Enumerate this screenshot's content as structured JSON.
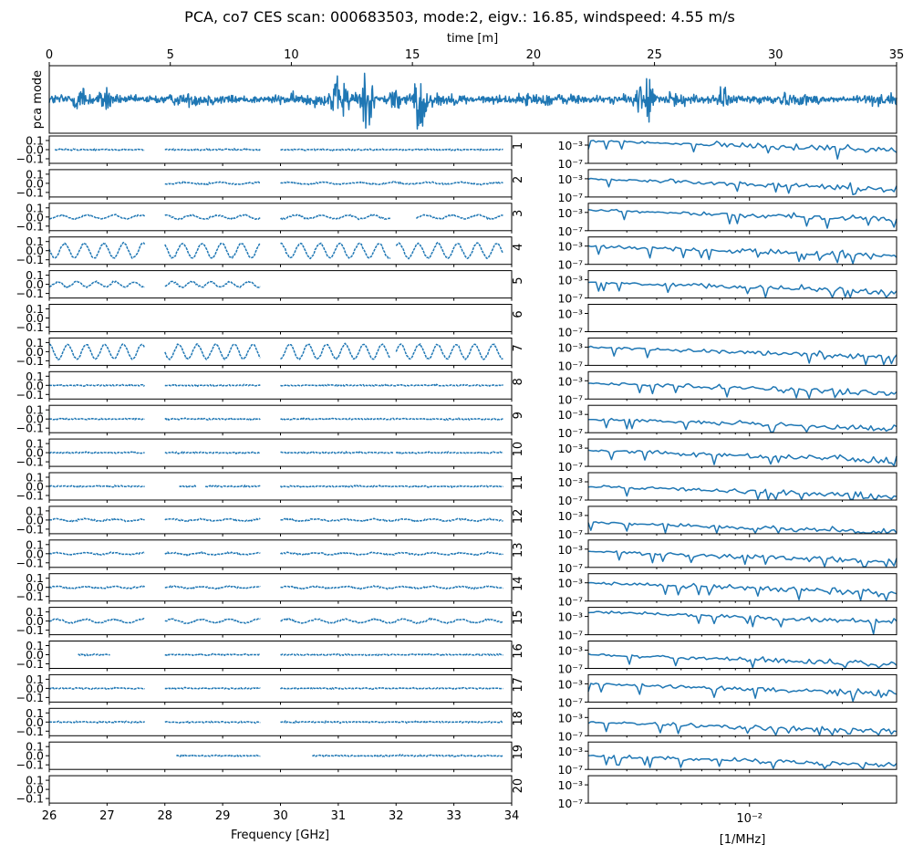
{
  "title": "PCA, co7 CES scan: 000683503, mode:2, eigv.: 16.85, windspeed: 4.55 m/s",
  "colors": {
    "series": "#1f77b4",
    "axes": "#000000",
    "background": "#ffffff"
  },
  "chart_data": [
    {
      "id": "timestream",
      "type": "line",
      "xlabel": "time [m]",
      "ylabel": "pca mode",
      "xlim": [
        0,
        35
      ],
      "xticks": [
        0,
        5,
        10,
        15,
        20,
        25,
        30,
        35
      ],
      "xtick_labels": [
        "0",
        "5",
        "10",
        "15",
        "20",
        "25",
        "30",
        "35"
      ],
      "xaxis_position": "top",
      "yticks": [],
      "ylim": [
        -4,
        4
      ],
      "description_of_series": "single noisy PCA-mode timestream, baseline near 0",
      "bursts": [
        {
          "t": 1.3,
          "amp": 1.3
        },
        {
          "t": 2.4,
          "amp": 1.2
        },
        {
          "t": 11.8,
          "amp": 1.6
        },
        {
          "t": 12.3,
          "amp": 2.0
        },
        {
          "t": 13.0,
          "amp": 2.2
        },
        {
          "t": 13.3,
          "amp": 1.5
        },
        {
          "t": 14.3,
          "amp": 1.4
        },
        {
          "t": 15.3,
          "amp": 2.8
        },
        {
          "t": 24.5,
          "amp": 1.8
        },
        {
          "t": 24.8,
          "amp": 1.4
        },
        {
          "t": 27.8,
          "amp": 1.0
        }
      ]
    },
    {
      "id": "frequency_panels",
      "type": "scatter",
      "xlabel": "Frequency [GHz]",
      "xlim": [
        26,
        34
      ],
      "xticks": [
        26,
        27,
        28,
        29,
        30,
        31,
        32,
        33,
        34
      ],
      "xtick_labels": [
        "26",
        "27",
        "28",
        "29",
        "30",
        "31",
        "32",
        "33",
        "34"
      ],
      "ylim": [
        -0.15,
        0.15
      ],
      "yticks": [
        0.1,
        0.0,
        -0.1
      ],
      "ytick_labels": [
        "0.1",
        "0.0",
        "−0.1"
      ],
      "panels": [
        {
          "label": "1",
          "segments": [
            [
              26.1,
              27.65
            ],
            [
              28.0,
              29.65
            ],
            [
              30.0,
              33.85
            ]
          ],
          "wave_amp": 0.0,
          "wave_period": 0
        },
        {
          "label": "2",
          "segments": [
            [
              28.0,
              29.65
            ],
            [
              30.0,
              33.85
            ]
          ],
          "wave_amp": 0.01,
          "wave_period": 0.6
        },
        {
          "label": "3",
          "segments": [
            [
              26.0,
              27.65
            ],
            [
              28.0,
              29.65
            ],
            [
              30.0,
              31.9
            ],
            [
              32.35,
              33.85
            ]
          ],
          "wave_amp": 0.02,
          "wave_period": 0.45
        },
        {
          "label": "4",
          "segments": [
            [
              26.0,
              27.65
            ],
            [
              28.0,
              29.65
            ],
            [
              30.0,
              31.9
            ],
            [
              32.0,
              33.85
            ]
          ],
          "wave_amp": 0.08,
          "wave_period": 0.34
        },
        {
          "label": "5",
          "segments": [
            [
              26.0,
              27.65
            ],
            [
              28.0,
              29.65
            ]
          ],
          "wave_amp": 0.03,
          "wave_period": 0.33
        },
        {
          "label": "6",
          "segments": [],
          "wave_amp": 0.0,
          "wave_period": 0
        },
        {
          "label": "7",
          "segments": [
            [
              26.0,
              27.65
            ],
            [
              28.0,
              29.65
            ],
            [
              30.0,
              31.9
            ],
            [
              32.0,
              33.85
            ]
          ],
          "wave_amp": 0.08,
          "wave_period": 0.32
        },
        {
          "label": "8",
          "segments": [
            [
              26.0,
              27.65
            ],
            [
              28.0,
              29.65
            ],
            [
              30.0,
              33.85
            ]
          ],
          "wave_amp": 0.0,
          "wave_period": 0
        },
        {
          "label": "9",
          "segments": [
            [
              26.0,
              27.65
            ],
            [
              28.0,
              29.65
            ],
            [
              30.0,
              33.85
            ]
          ],
          "wave_amp": 0.0,
          "wave_period": 0
        },
        {
          "label": "10",
          "segments": [
            [
              26.0,
              27.65
            ],
            [
              28.0,
              29.65
            ],
            [
              30.0,
              31.95
            ],
            [
              32.0,
              33.85
            ]
          ],
          "wave_amp": 0.0,
          "wave_period": 0
        },
        {
          "label": "11",
          "segments": [
            [
              26.0,
              27.65
            ],
            [
              28.25,
              28.55
            ],
            [
              28.7,
              29.65
            ],
            [
              30.0,
              33.85
            ]
          ],
          "wave_amp": 0.0,
          "wave_period": 0
        },
        {
          "label": "12",
          "segments": [
            [
              26.0,
              27.65
            ],
            [
              28.0,
              29.65
            ],
            [
              30.0,
              33.85
            ]
          ],
          "wave_amp": 0.01,
          "wave_period": 0.5
        },
        {
          "label": "13",
          "segments": [
            [
              26.0,
              27.65
            ],
            [
              28.0,
              29.65
            ],
            [
              30.0,
              33.85
            ]
          ],
          "wave_amp": 0.01,
          "wave_period": 0.5
        },
        {
          "label": "14",
          "segments": [
            [
              26.0,
              27.65
            ],
            [
              28.0,
              29.65
            ],
            [
              30.0,
              33.85
            ]
          ],
          "wave_amp": 0.01,
          "wave_period": 0.5
        },
        {
          "label": "15",
          "segments": [
            [
              26.0,
              27.65
            ],
            [
              28.0,
              29.65
            ],
            [
              30.0,
              33.85
            ]
          ],
          "wave_amp": 0.02,
          "wave_period": 0.5
        },
        {
          "label": "16",
          "segments": [
            [
              26.5,
              27.05
            ],
            [
              28.0,
              29.65
            ],
            [
              30.0,
              33.85
            ]
          ],
          "wave_amp": 0.0,
          "wave_period": 0
        },
        {
          "label": "17",
          "segments": [
            [
              26.0,
              27.65
            ],
            [
              28.0,
              29.65
            ],
            [
              30.0,
              33.85
            ]
          ],
          "wave_amp": 0.0,
          "wave_period": 0
        },
        {
          "label": "18",
          "segments": [
            [
              26.0,
              27.65
            ],
            [
              28.0,
              29.65
            ],
            [
              30.0,
              33.85
            ]
          ],
          "wave_amp": 0.0,
          "wave_period": 0
        },
        {
          "label": "19",
          "segments": [
            [
              28.2,
              29.65
            ],
            [
              30.55,
              33.85
            ]
          ],
          "wave_amp": 0.0,
          "wave_period": 0
        },
        {
          "label": "20",
          "segments": [],
          "wave_amp": 0.0,
          "wave_period": 0
        }
      ]
    },
    {
      "id": "spectra_panels",
      "type": "line",
      "xlabel": "[1/MHz]",
      "xscale": "log",
      "xlim": [
        0.003,
        0.03
      ],
      "xticks": [
        0.01
      ],
      "xtick_labels": [
        "10⁻²"
      ],
      "yscale": "log",
      "ylim": [
        1e-07,
        0.1
      ],
      "yticks": [
        0.001,
        1e-07
      ],
      "ytick_labels": [
        "10⁻³",
        "10⁻⁷"
      ],
      "panels": [
        {
          "label": "1",
          "has_data": true,
          "start_level": -2.0
        },
        {
          "label": "2",
          "has_data": true,
          "start_level": -3.0
        },
        {
          "label": "3",
          "has_data": true,
          "start_level": -2.5
        },
        {
          "label": "4",
          "has_data": true,
          "start_level": -3.0
        },
        {
          "label": "5",
          "has_data": true,
          "start_level": -3.5
        },
        {
          "label": "6",
          "has_data": false,
          "start_level": 0
        },
        {
          "label": "7",
          "has_data": true,
          "start_level": -3.0
        },
        {
          "label": "8",
          "has_data": true,
          "start_level": -3.5
        },
        {
          "label": "9",
          "has_data": true,
          "start_level": -4.0
        },
        {
          "label": "10",
          "has_data": true,
          "start_level": -3.5
        },
        {
          "label": "11",
          "has_data": true,
          "start_level": -4.0
        },
        {
          "label": "12",
          "has_data": true,
          "start_level": -4.5
        },
        {
          "label": "13",
          "has_data": true,
          "start_level": -3.5
        },
        {
          "label": "14",
          "has_data": true,
          "start_level": -3.0
        },
        {
          "label": "15",
          "has_data": true,
          "start_level": -2.0
        },
        {
          "label": "16",
          "has_data": true,
          "start_level": -4.0
        },
        {
          "label": "17",
          "has_data": true,
          "start_level": -3.0
        },
        {
          "label": "18",
          "has_data": true,
          "start_level": -4.0
        },
        {
          "label": "19",
          "has_data": true,
          "start_level": -4.0
        },
        {
          "label": "20",
          "has_data": false,
          "start_level": 0
        }
      ]
    }
  ]
}
